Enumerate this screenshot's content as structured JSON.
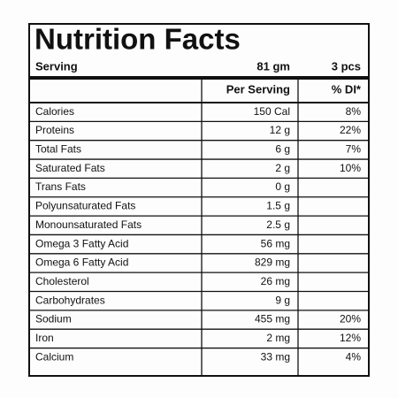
{
  "title": "Nutrition Facts",
  "serving": {
    "label": "Serving",
    "weight": "81 gm",
    "pieces": "3 pcs"
  },
  "columns": [
    "Per Serving",
    "% DI*"
  ],
  "nutrients": [
    {
      "name": "Calories",
      "amount": "150 Cal",
      "di": "8%"
    },
    {
      "name": "Proteins",
      "amount": "12 g",
      "di": "22%"
    },
    {
      "name": "Total Fats",
      "amount": "6 g",
      "di": "7%"
    },
    {
      "name": "Saturated Fats",
      "amount": "2 g",
      "di": "10%"
    },
    {
      "name": "Trans Fats",
      "amount": "0 g"
    },
    {
      "name": "Polyunsaturated Fats",
      "amount": "1.5 g"
    },
    {
      "name": "Monounsaturated Fats",
      "amount": "2.5 g"
    },
    {
      "name": "Omega 3 Fatty Acid",
      "amount": "56 mg"
    },
    {
      "name": "Omega 6 Fatty Acid",
      "amount": "829 mg"
    },
    {
      "name": "Cholesterol",
      "amount": "26 mg"
    },
    {
      "name": "Carbohydrates",
      "amount": "9 g"
    },
    {
      "name": "Sodium",
      "amount": "455 mg",
      "di": "20%"
    },
    {
      "name": "Iron",
      "amount": "2 mg",
      "di": "12%"
    },
    {
      "name": "Calcium",
      "amount": "33 mg",
      "di": "4%"
    }
  ]
}
